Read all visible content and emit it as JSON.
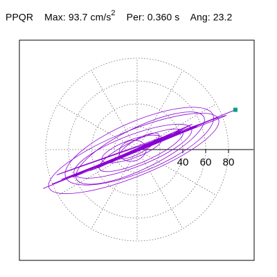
{
  "header": {
    "station": "PPQR",
    "max_label": "Max:",
    "max_value": "93.7 cm/s",
    "max_exp": "2",
    "per_label": "Per:",
    "per_value": "0.360 s",
    "ang_label": "Ang:",
    "ang_value": "23.2"
  },
  "chart_data": {
    "type": "line",
    "title": "",
    "xlabel": "",
    "ylabel": "",
    "polar_rings": [
      20,
      40,
      60,
      80
    ],
    "radial_spokes_deg": [
      0,
      30,
      60,
      90,
      120,
      150,
      180,
      210,
      240,
      270,
      300,
      330
    ],
    "tick_labels": [
      "40",
      "60",
      "80"
    ],
    "tick_values": [
      40,
      60,
      80
    ],
    "grid": true,
    "series_color": "#8a00d4",
    "marker_color": "#00a080",
    "peak_point": [
      86,
      34.8
    ],
    "series": [
      {
        "x": [
          0,
          6,
          -4,
          12,
          -10,
          18,
          -14,
          9,
          -22,
          30,
          -34,
          48,
          -56,
          70,
          -82,
          86,
          -74,
          60,
          -50,
          38,
          -26,
          14,
          -6,
          2,
          -40,
          52,
          -66,
          78,
          -70,
          44,
          -30,
          22,
          -18,
          10,
          -8,
          4
        ],
        "y": [
          0,
          3,
          -2,
          6,
          -5,
          9,
          -6,
          4,
          -11,
          14,
          -16,
          22,
          -24,
          28,
          -34,
          34.8,
          -30,
          24,
          -20,
          16,
          -12,
          7,
          -3,
          1,
          -18,
          20,
          -26,
          30,
          -22,
          17,
          -13,
          10,
          -8,
          5,
          -4,
          2
        ]
      }
    ]
  }
}
